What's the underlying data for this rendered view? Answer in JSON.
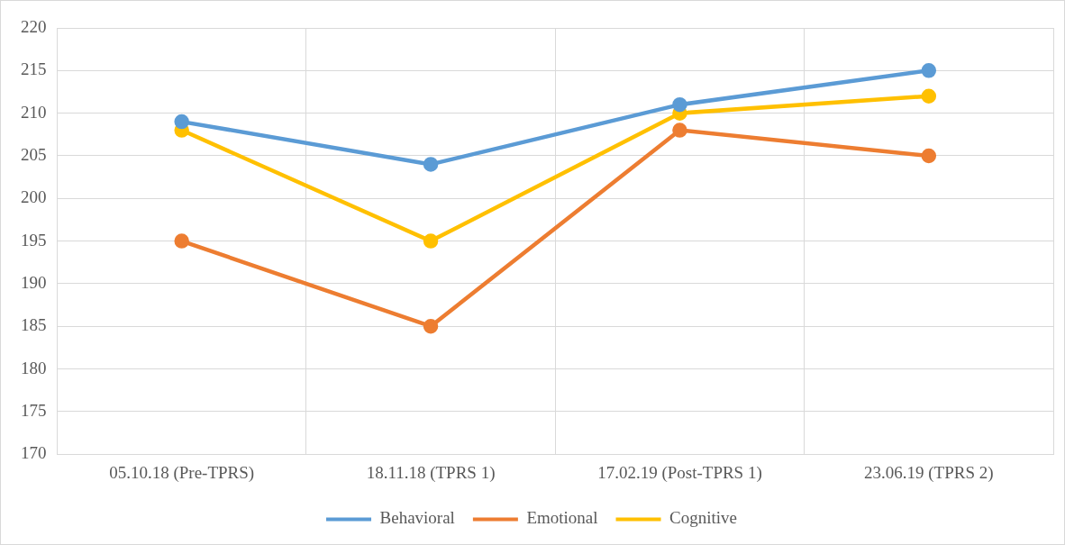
{
  "chart_data": {
    "type": "line",
    "categories": [
      "05.10.18 (Pre-TPRS)",
      "18.11.18 (TPRS 1)",
      "17.02.19 (Post-TPRS 1)",
      "23.06.19 (TPRS 2)"
    ],
    "series": [
      {
        "name": "Behavioral",
        "color": "#5b9bd5",
        "values": [
          209,
          204,
          211,
          215
        ]
      },
      {
        "name": "Emotional",
        "color": "#ed7d31",
        "values": [
          195,
          185,
          208,
          205
        ]
      },
      {
        "name": "Cognitive",
        "color": "#ffc000",
        "values": [
          208,
          195,
          210,
          212
        ]
      }
    ],
    "ylim": [
      170,
      220
    ],
    "yticks": [
      170,
      175,
      180,
      185,
      190,
      195,
      200,
      205,
      210,
      215,
      220
    ],
    "grid": true,
    "legend": "bottom",
    "marker": "circle",
    "line_style": "solid"
  }
}
